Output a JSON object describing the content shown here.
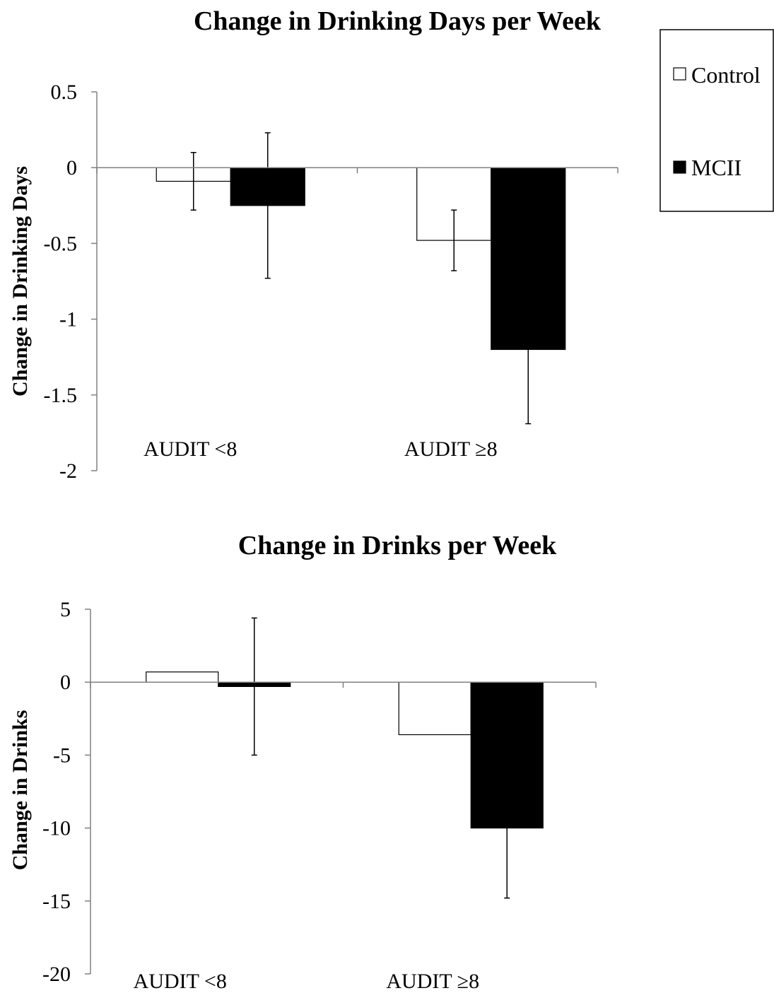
{
  "legend": [
    {
      "name": "Control",
      "color": "#ffffff"
    },
    {
      "name": "MCII",
      "color": "#000000"
    }
  ],
  "chart_data": [
    {
      "type": "bar",
      "title": "Change in Drinking Days per Week",
      "ylabel": "Change in Drinking Days",
      "xlabel": "",
      "categories": [
        "AUDIT <8",
        "AUDIT ≥8"
      ],
      "ylim": [
        -2,
        0.5
      ],
      "yticks": [
        "0.5",
        "0",
        "-0.5",
        "-1",
        "-1.5",
        "-2"
      ],
      "series": [
        {
          "name": "Control",
          "values": [
            -0.09,
            -0.48
          ],
          "error": [
            0.19,
            0.2
          ],
          "color": "#ffffff"
        },
        {
          "name": "MCII",
          "values": [
            -0.25,
            -1.2
          ],
          "error": [
            0.48,
            0.49
          ],
          "color": "#000000"
        }
      ]
    },
    {
      "type": "bar",
      "title": "Change in Drinks per Week",
      "ylabel": "Change in Drinks",
      "xlabel": "",
      "categories": [
        "AUDIT <8",
        "AUDIT ≥8"
      ],
      "ylim": [
        -20,
        5
      ],
      "yticks": [
        "5",
        "0",
        "-5",
        "-10",
        "-15",
        "-20"
      ],
      "series": [
        {
          "name": "Control",
          "values": [
            0.7,
            -3.6
          ],
          "error": [
            0,
            0
          ],
          "color": "#ffffff"
        },
        {
          "name": "MCII",
          "values": [
            -0.3,
            -10.0
          ],
          "error": [
            4.7,
            4.8
          ],
          "color": "#000000"
        }
      ]
    }
  ]
}
